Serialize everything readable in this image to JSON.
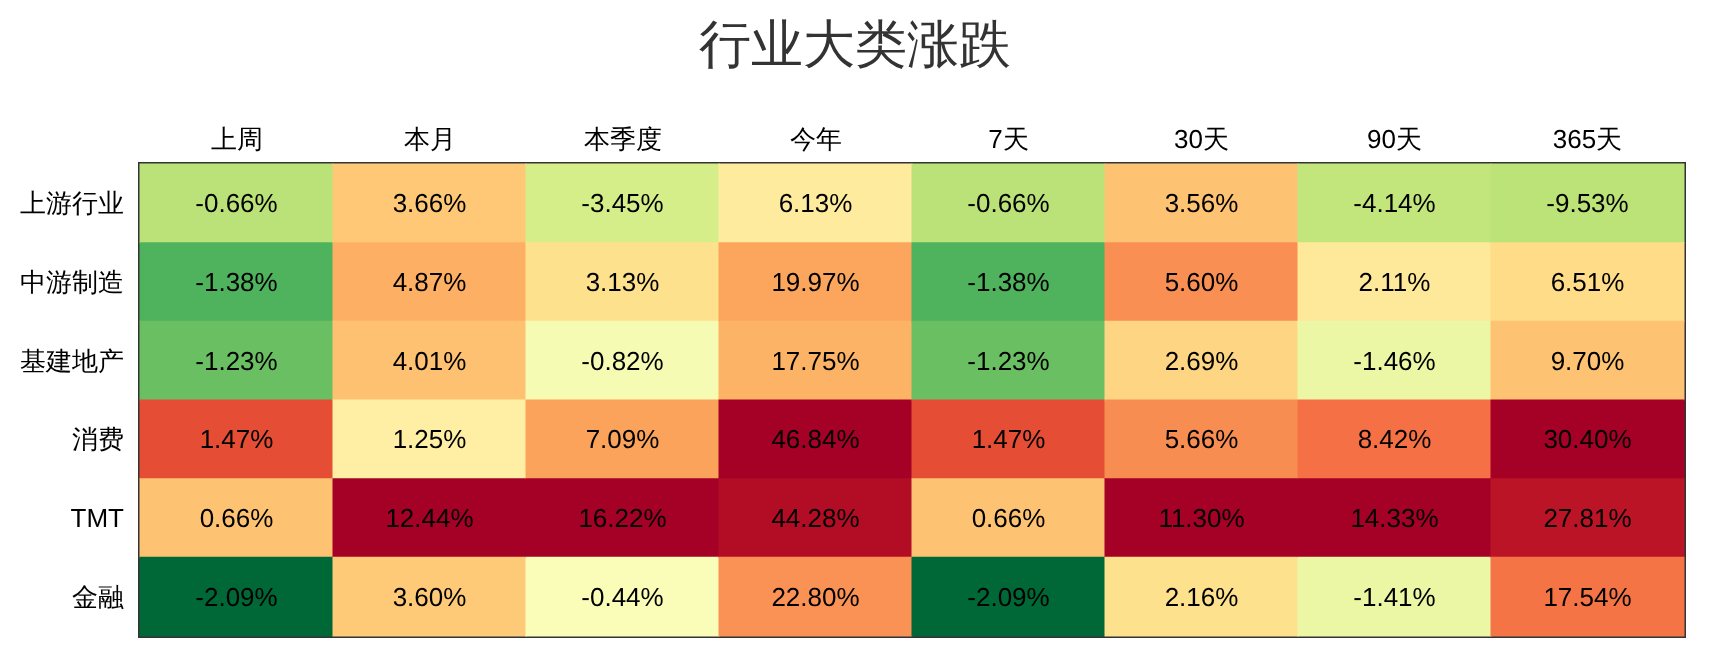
{
  "chart_data": {
    "type": "heatmap",
    "title": "行业大类涨跌",
    "categories": [
      "上周",
      "本月",
      "本季度",
      "今年",
      "7天",
      "30天",
      "90天",
      "365天"
    ],
    "y_categories": [
      "上游行业",
      "中游制造",
      "基建地产",
      "消费",
      "TMT",
      "金融"
    ],
    "cells": [
      [
        -0.66,
        3.66,
        -3.45,
        6.13,
        -0.66,
        3.56,
        -4.14,
        -9.53
      ],
      [
        -1.38,
        4.87,
        3.13,
        19.97,
        -1.38,
        5.6,
        2.11,
        6.51
      ],
      [
        -1.23,
        4.01,
        -0.82,
        17.75,
        -1.23,
        2.69,
        -1.46,
        9.7
      ],
      [
        1.47,
        1.25,
        7.09,
        46.84,
        1.47,
        5.66,
        8.42,
        30.4
      ],
      [
        0.66,
        12.44,
        16.22,
        44.28,
        0.66,
        11.3,
        14.33,
        27.81
      ],
      [
        -2.09,
        3.6,
        -0.44,
        22.8,
        -2.09,
        2.16,
        -1.41,
        17.54
      ]
    ],
    "cell_labels": [
      [
        "-0.66%",
        "3.66%",
        "-3.45%",
        "6.13%",
        "-0.66%",
        "3.56%",
        "-4.14%",
        "-9.53%"
      ],
      [
        "-1.38%",
        "4.87%",
        "3.13%",
        "19.97%",
        "-1.38%",
        "5.60%",
        "2.11%",
        "6.51%"
      ],
      [
        "-1.23%",
        "4.01%",
        "-0.82%",
        "17.75%",
        "-1.23%",
        "2.69%",
        "-1.46%",
        "9.70%"
      ],
      [
        "1.47%",
        "1.25%",
        "7.09%",
        "46.84%",
        "1.47%",
        "5.66%",
        "8.42%",
        "30.40%"
      ],
      [
        "0.66%",
        "12.44%",
        "16.22%",
        "44.28%",
        "0.66%",
        "11.30%",
        "14.33%",
        "27.81%"
      ],
      [
        "-2.09%",
        "3.60%",
        "-0.44%",
        "22.80%",
        "-2.09%",
        "2.16%",
        "-1.41%",
        "17.54%"
      ]
    ]
  }
}
